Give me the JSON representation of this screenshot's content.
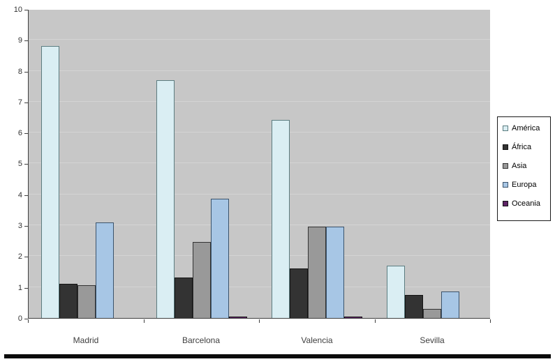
{
  "chart_data": {
    "type": "bar",
    "title": "",
    "xlabel": "",
    "ylabel": "",
    "categories": [
      "Madrid",
      "Barcelona",
      "Valencia",
      "Sevilla"
    ],
    "series": [
      {
        "name": "América",
        "fill": "#daeef3",
        "border": "#5b7c80",
        "values": [
          8.8,
          7.7,
          6.4,
          1.7
        ]
      },
      {
        "name": "África",
        "fill": "#333333",
        "border": "#141414",
        "values": [
          1.1,
          1.3,
          1.6,
          0.75
        ]
      },
      {
        "name": "Asia",
        "fill": "#999999",
        "border": "#333333",
        "values": [
          1.05,
          2.45,
          2.95,
          0.3
        ]
      },
      {
        "name": "Europa",
        "fill": "#a7c6e5",
        "border": "#3b536b",
        "values": [
          3.1,
          3.85,
          2.95,
          0.85
        ]
      },
      {
        "name": "Oceania",
        "fill": "#5e2366",
        "border": "#141414",
        "values": [
          0.01,
          0.05,
          0.05,
          0.01
        ]
      }
    ],
    "ylim": [
      0,
      10
    ],
    "ytick_step": 1,
    "ytick_labels": [
      "0",
      "1",
      "2",
      "3",
      "4",
      "5",
      "6",
      "7",
      "8",
      "9",
      "10"
    ],
    "grid": true,
    "legend_position": "right",
    "plot_background": "#c7c7c7",
    "gridline_color": "#d4d4d4",
    "axis_color": "#3f3f3f"
  },
  "page": {
    "background": "#ffffff",
    "bottom_rule_color": "#0b0b0b"
  }
}
